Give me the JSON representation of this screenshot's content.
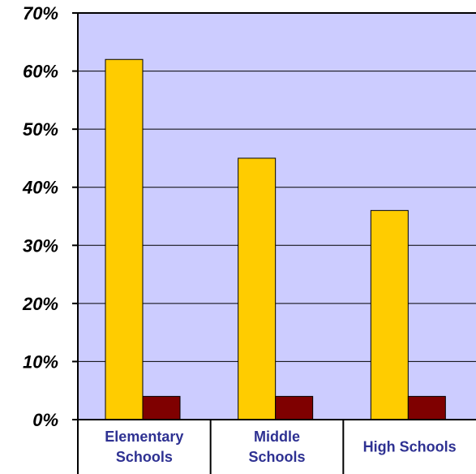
{
  "chart_data": {
    "type": "bar",
    "title": "",
    "xlabel": "",
    "ylabel": "",
    "categories": [
      [
        "Elementary",
        "Schools"
      ],
      [
        "Middle",
        "Schools"
      ],
      [
        "High Schools"
      ]
    ],
    "series": [
      {
        "values": [
          62,
          45,
          36
        ],
        "color": "#ffcc00"
      },
      {
        "values": [
          4,
          4,
          4
        ],
        "color": "#7f0000"
      }
    ],
    "ylim": [
      0,
      70
    ],
    "yticks": [
      "0%",
      "10%",
      "20%",
      "30%",
      "40%",
      "50%",
      "60%",
      "70%"
    ],
    "grid": true,
    "legend": "none",
    "plot_background": "#ccccff"
  }
}
